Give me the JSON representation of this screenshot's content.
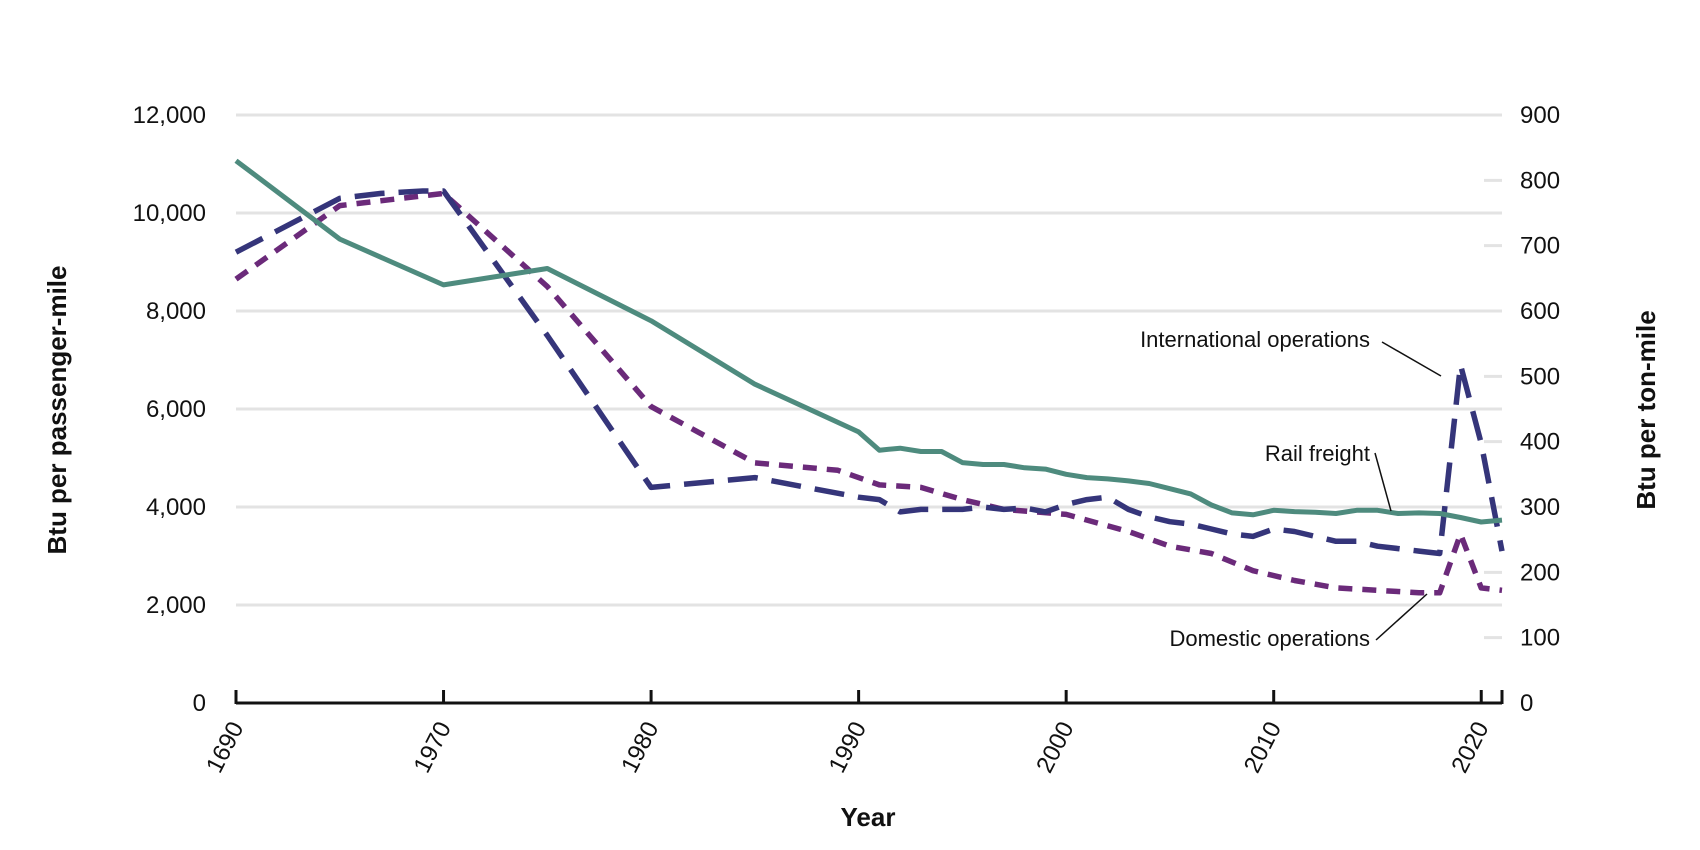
{
  "chart_data": {
    "type": "line",
    "xlabel": "Year",
    "ylabel_left": "Btu per passenger-mile",
    "ylabel_right": "Btu per ton-mile",
    "ylim_left": [
      0,
      12000
    ],
    "ylim_right": [
      0,
      900
    ],
    "yticks_left": [
      "0",
      "2,000",
      "4,000",
      "6,000",
      "8,000",
      "10,000",
      "12,000"
    ],
    "yticks_right": [
      "0",
      "100",
      "200",
      "300",
      "400",
      "500",
      "600",
      "700",
      "800",
      "900"
    ],
    "xticks": [
      "1690",
      "1970",
      "1980",
      "1990",
      "2000",
      "2010",
      "2020"
    ],
    "grid": true,
    "x_note": "first tick printed as 1690 sits where 1960 would be; years 1960-2021",
    "series": [
      {
        "name": "International operations",
        "axis": "left",
        "style": "dashed",
        "color": "#35357a",
        "x": [
          1960,
          1965,
          1967,
          1969,
          1970,
          1975,
          1980,
          1985,
          1990,
          1991,
          1992,
          1993,
          1994,
          1995,
          1996,
          1997,
          1998,
          1999,
          2000,
          2001,
          2002,
          2003,
          2004,
          2005,
          2006,
          2007,
          2008,
          2009,
          2010,
          2011,
          2012,
          2013,
          2014,
          2015,
          2016,
          2017,
          2018,
          2019,
          2020,
          2021
        ],
        "values": [
          9200,
          10300,
          10400,
          10450,
          10450,
          7500,
          4400,
          4600,
          4200,
          4150,
          3900,
          3950,
          3950,
          3950,
          4000,
          3950,
          3980,
          3900,
          4050,
          4150,
          4200,
          3950,
          3800,
          3700,
          3650,
          3550,
          3450,
          3400,
          3550,
          3500,
          3400,
          3300,
          3300,
          3200,
          3150,
          3100,
          3050,
          6900,
          5300,
          3100
        ]
      },
      {
        "name": "Domestic operations",
        "axis": "left",
        "style": "dotted",
        "color": "#6b2a7a",
        "x": [
          1960,
          1965,
          1970,
          1975,
          1980,
          1985,
          1989,
          1991,
          1993,
          1995,
          1997,
          2000,
          2003,
          2005,
          2007,
          2009,
          2011,
          2013,
          2015,
          2017,
          2018,
          2019,
          2020,
          2021
        ],
        "values": [
          8650,
          10150,
          10400,
          8500,
          6050,
          4900,
          4750,
          4450,
          4400,
          4150,
          3950,
          3850,
          3500,
          3200,
          3050,
          2700,
          2500,
          2350,
          2300,
          2250,
          2250,
          3450,
          2350,
          2300
        ]
      },
      {
        "name": "Rail freight",
        "axis": "right",
        "style": "solid",
        "color": "#4e8b7e",
        "x": [
          1960,
          1965,
          1970,
          1975,
          1980,
          1985,
          1990,
          1991,
          1992,
          1993,
          1994,
          1995,
          1996,
          1997,
          1998,
          1999,
          2000,
          2001,
          2002,
          2003,
          2004,
          2005,
          2006,
          2007,
          2008,
          2009,
          2010,
          2011,
          2012,
          2013,
          2014,
          2015,
          2016,
          2017,
          2018,
          2019,
          2020,
          2021
        ],
        "values": [
          830,
          710,
          640,
          665,
          585,
          488,
          415,
          387,
          390,
          385,
          385,
          368,
          365,
          365,
          360,
          358,
          350,
          345,
          343,
          340,
          336,
          328,
          320,
          303,
          291,
          288,
          295,
          293,
          292,
          290,
          295,
          295,
          290,
          291,
          290,
          284,
          277,
          280
        ]
      }
    ],
    "annotations": [
      "International operations",
      "Rail freight",
      "Domestic operations"
    ]
  }
}
